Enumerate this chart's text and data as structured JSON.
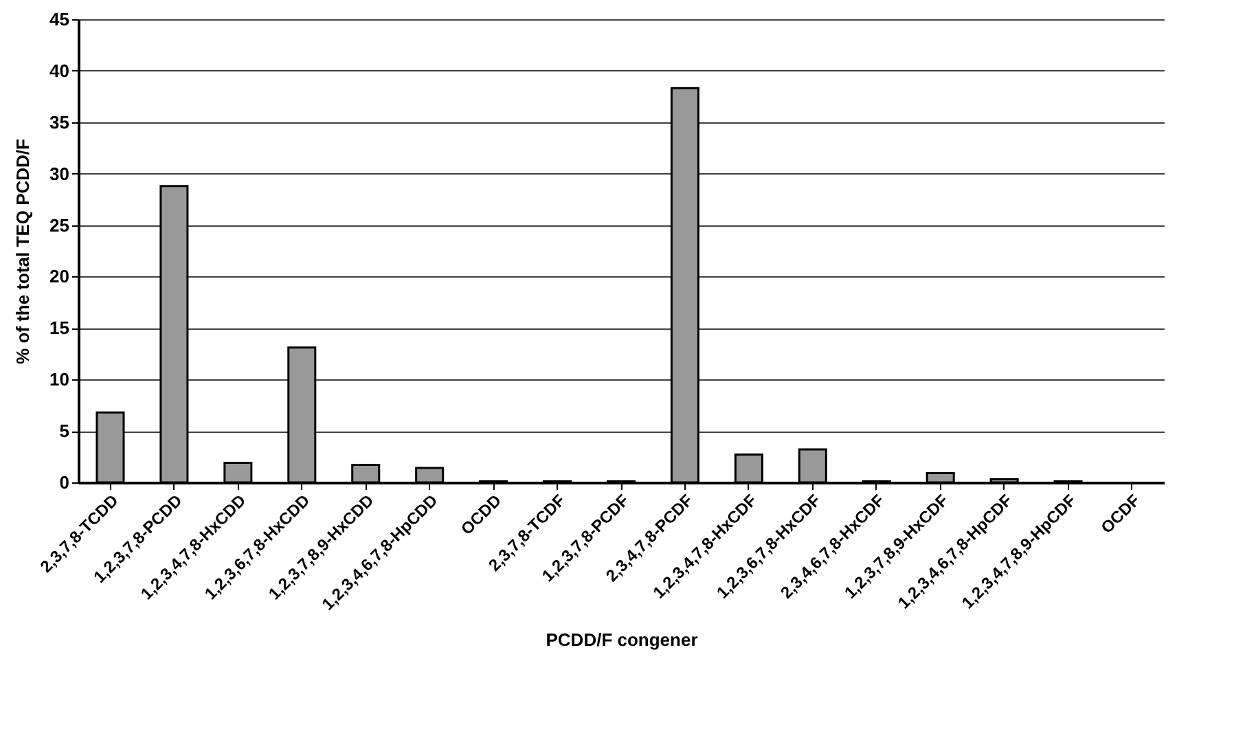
{
  "chart_data": {
    "type": "bar",
    "xlabel": "PCDD/F congener",
    "ylabel": "% of the total TEQ PCDD/F",
    "categories": [
      "2,3,7,8-TCDD",
      "1,2,3,7,8-PCDD",
      "1,2,3,4,7,8-HxCDD",
      "1,2,3,6,7,8-HxCDD",
      "1,2,3,7,8,9-HxCDD",
      "1,2,3,4,6,7,8-HpCDD",
      "OCDD",
      "2,3,7,8-TCDF",
      "1,2,3,7,8-PCDF",
      "2,3,4,7,8-PCDF",
      "1,2,3,4,7,8-HxCDF",
      "1,2,3,6,7,8-HxCDF",
      "2,3,4,6,7,8-HxCDF",
      "1,2,3,7,8,9-HxCDF",
      "1,2,3,4,6,7,8-HpCDF",
      "1,2,3,4,7,8,9-HpCDF",
      "OCDF"
    ],
    "values": [
      6.8,
      28.8,
      1.9,
      13.1,
      1.7,
      1.4,
      0.1,
      0.1,
      0.1,
      38.3,
      2.7,
      3.2,
      0.1,
      0.9,
      0.3,
      0.1,
      null
    ],
    "color": "#999999",
    "ylim": [
      0,
      45
    ],
    "yticks": [
      0,
      5,
      10,
      15,
      20,
      25,
      30,
      35,
      40,
      45
    ],
    "grid": "y"
  }
}
